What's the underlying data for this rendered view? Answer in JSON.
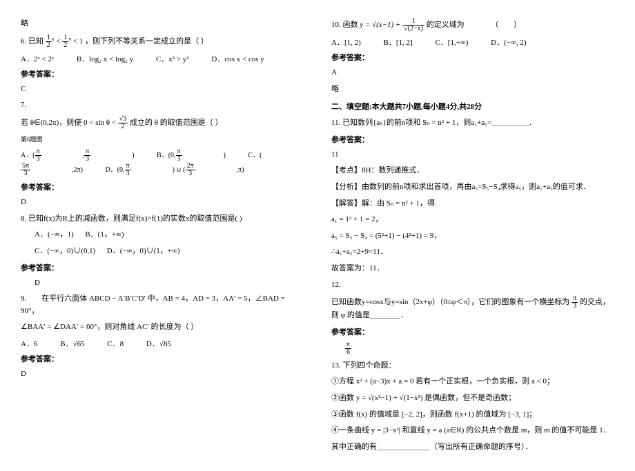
{
  "left": {
    "lue": "略",
    "q6": {
      "stem_pre": "6. 已知",
      "stem_expr": "(½)ˣ < (½)ʸ < 1",
      "stem_post": "，则下列不等关系一定成立的是（   ）",
      "optA": "A．2ˣ < 2ʸ",
      "optB": "B．log₂ x < log₂ y",
      "optC": "C．x³ > y³",
      "optD": "D．cos x < cos y",
      "ans_label": "参考答案：",
      "ans": "C"
    },
    "q7": {
      "num": "7.",
      "cond_pre": "若 θ∈(0,2π)，则使",
      "cond_expr": "0 < sin θ < √3 / 2",
      "cond_post": "成立的 θ 的取值范围是（  ）",
      "note": "第6题图",
      "optA": "A．( π/3 , π/3 )",
      "optB": "B．( 0 , π/3 )",
      "optC": "C．( 5π/3 , 2π )",
      "optD": "D．( 0 , π/3 ) ∪ ( 2π/3 , π )",
      "ans_label": "参考答案：",
      "ans": "D"
    },
    "q8": {
      "stem": "8. 已知f(x)为R上的减函数，则满足f(x)>f(1)的实数x的取值范围是(    )",
      "optA": "A．(−∞，1)",
      "optB": "B．(1，+∞)",
      "optC": "C．(−∞，0)∪(0,1)",
      "optD": "D．(−∞，0)∪(1，+∞)",
      "ans_label": "参考答案：",
      "ans": "D"
    },
    "q9": {
      "stem1": "9.　　在平行六面体 ABCD − A′B′C′D′ 中，AB = 4，AD = 3，AA′ = 5，∠BAD = 90°，",
      "stem2": "∠BAA′ = ∠DAA′ = 60°，则对角线 AC′ 的长度为（  ）",
      "optA": "A．6",
      "optB": "B．√65",
      "optC": "C．8",
      "optD": "D．√85",
      "ans_label": "参考答案：",
      "ans": "D"
    }
  },
  "right": {
    "q10": {
      "stem_pre": "10. 函数",
      "expr": "y = √(x−1) + 1/√(2−x)",
      "stem_post": "的定义域为　　　　（　　）",
      "optA": "A．[1, 2)",
      "optB": "B．[1, 2]",
      "optC": "C．[1,+∞)",
      "optD": "D．(−∞, 2)",
      "ans_label": "参考答案：",
      "ans": "A",
      "lue": "略"
    },
    "section2": "二、填空题:本大题共7小题,每小题4分,共28分",
    "q11": {
      "stem": "11. 已知数列{aₙ}的前n项和 Sₙ = n² + 1，则a₁+a₅=＿＿＿＿＿.",
      "ans_label": "参考答案：",
      "ans": "11",
      "point": "【考点】8H：数列递推式．",
      "analysis": "【分析】由数列的前n项和求出首项，再由a₅=S₅−S₄求得a₅，则a₁+a₅的值可求．",
      "sol_h": "【解答】解：由 Sₙ = n² + 1，得",
      "s1": "a₁ = 1² + 1 = 2，",
      "s2": "a₅ = S₅ − S₄ = (5²+1) − (4²+1) = 9，",
      "s3": "∴a₁+a₅=2+9=11．",
      "s4": "故答案为：11．"
    },
    "q12": {
      "num": "12.",
      "stem": "已知函数y=cosx与y=sin（2x+φ）（0≤φ＜π），它们的图象有一个横坐标为 π/3 的交点，则 φ 的值是＿＿＿＿．",
      "ans_label": "参考答案：",
      "ans": "π/6"
    },
    "q13": {
      "head": "13. 下列四个命题：",
      "p1": "①方程 x² + (a−3)x + a = 0 若有一个正实根，一个负实根，则 a < 0；",
      "p2": "②函数 y = √(x²−1) + √(1−x²) 是偶函数，但不是奇函数；",
      "p3": "③函数 f(x) 的值域是 [−2, 2]，则函数 f(x+1) 的值域为 [−3, 1]；",
      "p4": "④一条曲线 y = |3−x²| 和直线 y = a (a∈R) 的公共点个数是 m，则 m 的值不可能是 1．",
      "tail": "其中正确的有＿＿＿＿＿＿＿（写出所有正确命题的序号）．"
    }
  }
}
